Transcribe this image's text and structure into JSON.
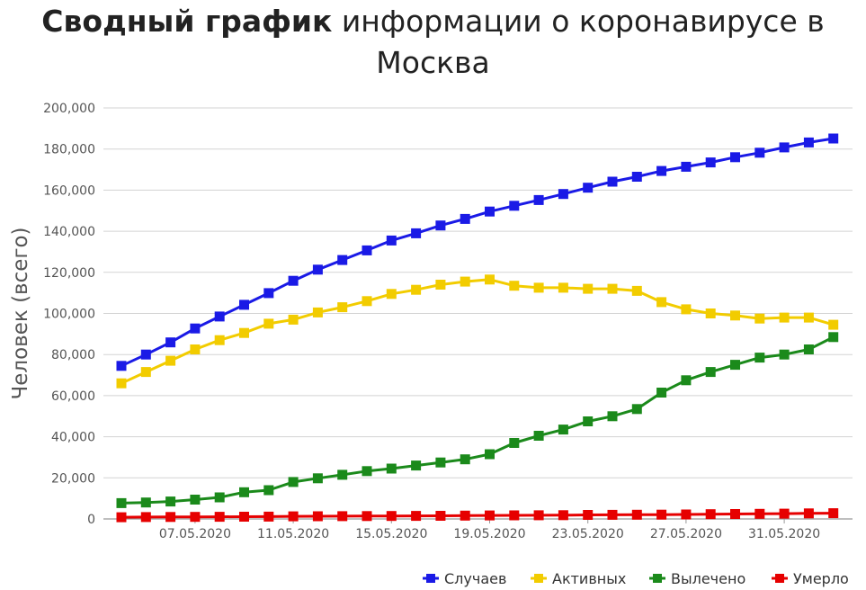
{
  "title": {
    "bold": "Сводный график",
    "rest_line1": " информации о коронавирусе в",
    "line2": "Москва"
  },
  "chart_data": {
    "type": "line",
    "title": "Сводный график информации о коронавирусе в Москва",
    "ylabel": "Человек (всего)",
    "xlabel": "",
    "ylim": [
      0,
      200000
    ],
    "y_ticks": [
      0,
      20000,
      40000,
      60000,
      80000,
      100000,
      120000,
      140000,
      160000,
      180000,
      200000
    ],
    "y_tick_labels": [
      "0",
      "20,000",
      "40,000",
      "60,000",
      "80,000",
      "100,000",
      "120,000",
      "140,000",
      "160,000",
      "180,000",
      "200,000"
    ],
    "x": [
      "04.05.2020",
      "05.05.2020",
      "06.05.2020",
      "07.05.2020",
      "08.05.2020",
      "09.05.2020",
      "10.05.2020",
      "11.05.2020",
      "12.05.2020",
      "13.05.2020",
      "14.05.2020",
      "15.05.2020",
      "16.05.2020",
      "17.05.2020",
      "18.05.2020",
      "19.05.2020",
      "20.05.2020",
      "21.05.2020",
      "22.05.2020",
      "23.05.2020",
      "24.05.2020",
      "25.05.2020",
      "26.05.2020",
      "27.05.2020",
      "28.05.2020",
      "29.05.2020",
      "30.05.2020",
      "31.05.2020",
      "01.06.2020",
      "02.06.2020"
    ],
    "x_tick_labels": [
      "07.05.2020",
      "11.05.2020",
      "15.05.2020",
      "19.05.2020",
      "23.05.2020",
      "27.05.2020",
      "31.05.2020"
    ],
    "legend_position": "bottom-right",
    "grid": true,
    "series": [
      {
        "name": "Случаев",
        "color": "#1a1ae6",
        "values": [
          74500,
          80000,
          85900,
          92700,
          98500,
          104200,
          109900,
          115900,
          121300,
          126000,
          130700,
          135500,
          139000,
          142800,
          146000,
          149600,
          152400,
          155200,
          158100,
          161200,
          164100,
          166500,
          169300,
          171400,
          173500,
          176000,
          178200,
          180800,
          183200,
          185100
        ]
      },
      {
        "name": "Активных",
        "color": "#f2cc00",
        "values": [
          66000,
          71500,
          77000,
          82500,
          87000,
          90500,
          95000,
          97000,
          100500,
          103000,
          106000,
          109500,
          111500,
          114000,
          115500,
          116500,
          113500,
          112500,
          112500,
          112000,
          112000,
          111000,
          105500,
          102000,
          100000,
          99000,
          97500,
          98000,
          98000,
          94500
        ]
      },
      {
        "name": "Вылечено",
        "color": "#1b8a1b",
        "values": [
          7700,
          8000,
          8500,
          9400,
          10500,
          13000,
          14000,
          18000,
          19800,
          21500,
          23300,
          24500,
          26000,
          27500,
          29000,
          31500,
          37000,
          40500,
          43500,
          47500,
          50000,
          53500,
          61500,
          67500,
          71500,
          75000,
          78500,
          80000,
          82500,
          88500
        ]
      },
      {
        "name": "Умерло",
        "color": "#e60000",
        "values": [
          850,
          900,
          950,
          1000,
          1050,
          1100,
          1150,
          1250,
          1300,
          1350,
          1400,
          1450,
          1500,
          1550,
          1600,
          1700,
          1750,
          1800,
          1850,
          1950,
          2000,
          2050,
          2100,
          2200,
          2300,
          2400,
          2500,
          2600,
          2700,
          2800
        ]
      }
    ]
  }
}
